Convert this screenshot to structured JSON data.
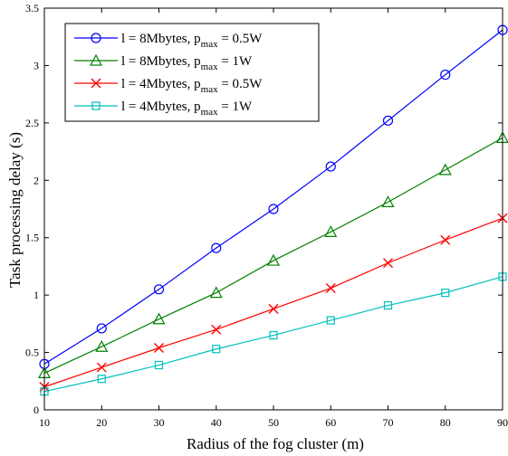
{
  "chart_data": {
    "type": "line",
    "title": "",
    "xlabel": "Radius of the fog cluster (m)",
    "ylabel": "Task processing delay (s)",
    "xlim": [
      10,
      90
    ],
    "ylim": [
      0,
      3.5
    ],
    "xticks": [
      10,
      20,
      30,
      40,
      50,
      60,
      70,
      80,
      90
    ],
    "yticks": [
      0,
      0.5,
      1,
      1.5,
      2,
      2.5,
      3,
      3.5
    ],
    "x": [
      10,
      20,
      30,
      40,
      50,
      60,
      70,
      80,
      90
    ],
    "grid": false,
    "legend_position": "top-left",
    "series": [
      {
        "name_main": "l = 8Mbytes, p",
        "name_sub": "max",
        "name_tail": " = 0.5W",
        "color": "#0000ff",
        "marker": "circle",
        "values": [
          0.4,
          0.71,
          1.05,
          1.41,
          1.75,
          2.12,
          2.52,
          2.92,
          3.31
        ]
      },
      {
        "name_main": "l = 8Mbytes, p",
        "name_sub": "max",
        "name_tail": " = 1W",
        "color": "#008000",
        "marker": "triangle",
        "values": [
          0.32,
          0.55,
          0.79,
          1.02,
          1.3,
          1.55,
          1.81,
          2.09,
          2.37
        ]
      },
      {
        "name_main": "l = 4Mbytes, p",
        "name_sub": "max",
        "name_tail": " = 0.5W",
        "color": "#ff0000",
        "marker": "x",
        "values": [
          0.2,
          0.37,
          0.54,
          0.7,
          0.88,
          1.06,
          1.28,
          1.48,
          1.67
        ]
      },
      {
        "name_main": "l = 4Mbytes, p",
        "name_sub": "max",
        "name_tail": " = 1W",
        "color": "#00bfbf",
        "marker": "square",
        "values": [
          0.16,
          0.27,
          0.39,
          0.53,
          0.65,
          0.78,
          0.91,
          1.02,
          1.16
        ]
      }
    ]
  }
}
